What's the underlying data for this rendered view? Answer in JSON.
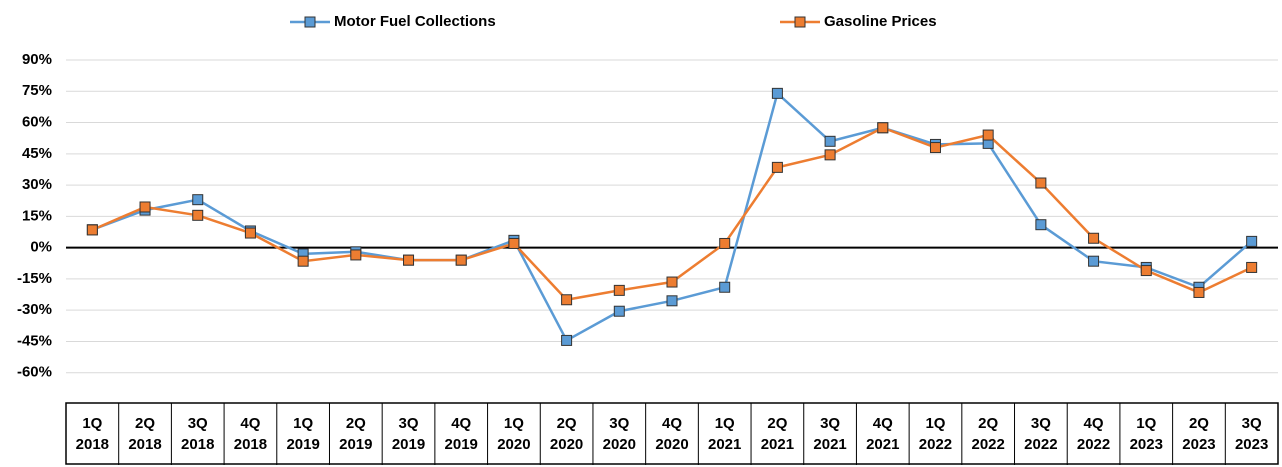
{
  "chart_data": {
    "type": "line",
    "categories": [
      "1Q 2018",
      "2Q 2018",
      "3Q 2018",
      "4Q 2018",
      "1Q 2019",
      "2Q 2019",
      "3Q 2019",
      "4Q 2019",
      "1Q 2020",
      "2Q 2020",
      "3Q 2020",
      "4Q 2020",
      "1Q 2021",
      "2Q 2021",
      "3Q 2021",
      "4Q 2021",
      "1Q 2022",
      "2Q 2022",
      "3Q 2022",
      "4Q 2022",
      "1Q 2023",
      "2Q 2023",
      "3Q 2023"
    ],
    "series": [
      {
        "name": "Motor Fuel Collections",
        "color": "#5b9bd5",
        "values": [
          8.6,
          18,
          23,
          8,
          -3,
          -2,
          -6,
          -6,
          3.5,
          -44.5,
          -30.5,
          -25.5,
          -19,
          74,
          51,
          57.5,
          49.5,
          50,
          11,
          -6.5,
          -9.5,
          -19,
          3
        ]
      },
      {
        "name": "Gasoline Prices",
        "color": "#ed7d31",
        "values": [
          8.5,
          19.5,
          15.5,
          7,
          -6.5,
          -3.5,
          -6,
          -6,
          2,
          -25,
          -20.5,
          -16.5,
          2,
          38.5,
          44.5,
          57.5,
          48,
          54,
          31,
          4.5,
          -11,
          -21.5,
          -9.5
        ]
      }
    ],
    "ylim": [
      -75,
      90
    ],
    "yticks": [
      {
        "value": 90,
        "label": "90%"
      },
      {
        "value": 75,
        "label": "75%"
      },
      {
        "value": 60,
        "label": "60%"
      },
      {
        "value": 45,
        "label": "45%"
      },
      {
        "value": 30,
        "label": "30%"
      },
      {
        "value": 15,
        "label": "15%"
      },
      {
        "value": 0,
        "label": "0%"
      },
      {
        "value": -15,
        "label": "-15%"
      },
      {
        "value": -30,
        "label": "-30%"
      },
      {
        "value": -45,
        "label": "-45%"
      },
      {
        "value": -60,
        "label": "-60%"
      }
    ],
    "grid": true,
    "legend": "top"
  }
}
